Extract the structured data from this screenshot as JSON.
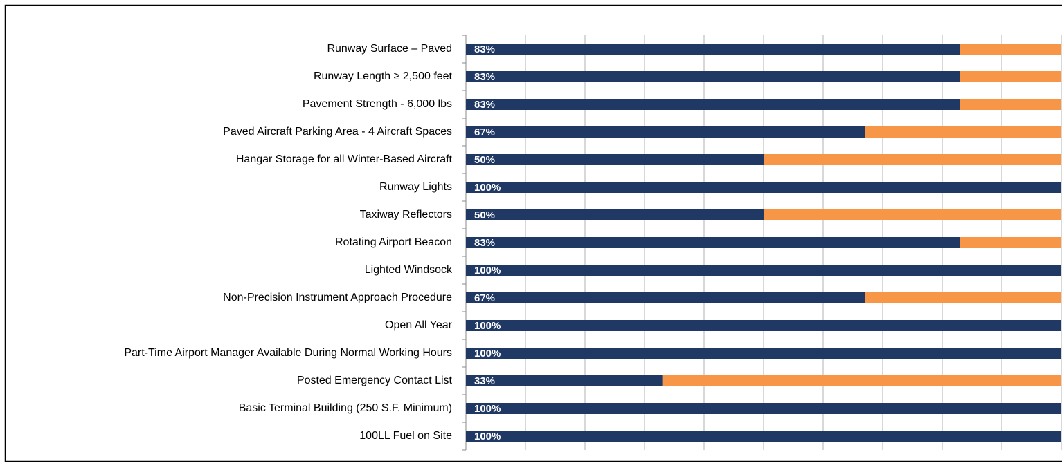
{
  "chart_data": {
    "type": "stacked_barh",
    "categories": [
      "Runway Surface – Paved",
      "Runway Length ≥ 2,500 feet",
      "Pavement Strength - 6,000 lbs",
      "Paved Aircraft Parking Area - 4 Aircraft Spaces",
      "Hangar Storage for all Winter-Based Aircraft",
      "Runway Lights",
      "Taxiway Reflectors",
      "Rotating Airport Beacon",
      "Lighted Windsock",
      "Non-Precision Instrument Approach Procedure",
      "Open All Year",
      "Part-Time Airport Manager Available During Normal Working Hours",
      "Posted Emergency Contact List",
      "Basic Terminal Building (250 S.F. Minimum)",
      "100LL Fuel on Site"
    ],
    "series": [
      {
        "color": "#1f3864",
        "values": [
          83,
          83,
          83,
          67,
          50,
          100,
          50,
          83,
          100,
          67,
          100,
          100,
          33,
          100,
          100
        ],
        "value_labels": [
          "83%",
          "83%",
          "83%",
          "67%",
          "50%",
          "100%",
          "50%",
          "83%",
          "100%",
          "67%",
          "100%",
          "100%",
          "33%",
          "100%",
          "100%"
        ]
      },
      {
        "color": "#f79646",
        "values": [
          17,
          17,
          17,
          33,
          50,
          0,
          50,
          17,
          0,
          33,
          0,
          0,
          67,
          0,
          0
        ]
      }
    ],
    "xlim": [
      0,
      100
    ],
    "xticks": [
      0,
      10,
      20,
      30,
      40,
      50,
      60,
      70,
      80,
      90,
      100
    ],
    "grid": true
  }
}
